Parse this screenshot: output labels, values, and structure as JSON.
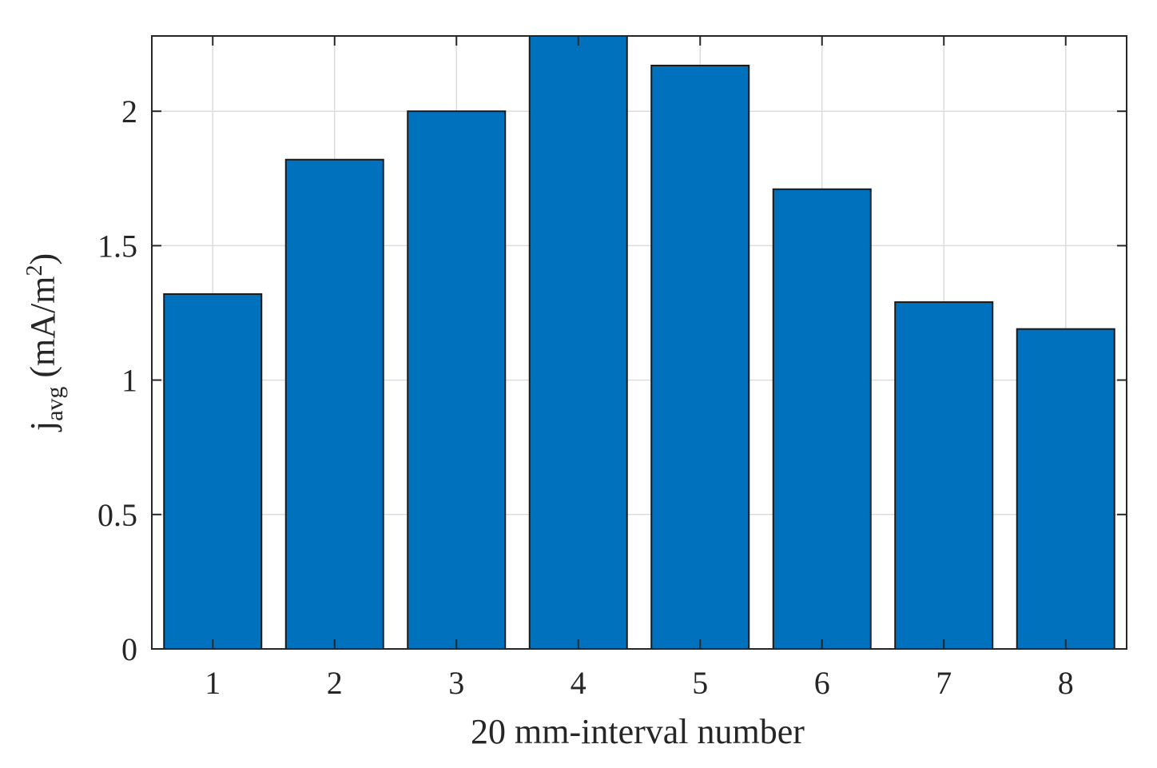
{
  "chart_data": {
    "type": "bar",
    "categories": [
      "1",
      "2",
      "3",
      "4",
      "5",
      "6",
      "7",
      "8"
    ],
    "values": [
      1.32,
      1.82,
      2.0,
      2.28,
      2.17,
      1.71,
      1.29,
      1.19
    ],
    "title": "",
    "xlabel": "20 mm-interval number",
    "ylabel": {
      "main": "j",
      "subscript": "avg",
      "unit_open": " (mA/m",
      "unit_sup": "2",
      "unit_close": ")"
    },
    "ylim": [
      0,
      2.28
    ],
    "yticks": [
      0,
      0.5,
      1,
      1.5,
      2
    ],
    "ytick_labels": [
      "0",
      "0.5",
      "1",
      "1.5",
      "2"
    ],
    "grid": true,
    "colors": {
      "bar_fill": "#0072BD",
      "bar_edge": "#1a1a1a",
      "axis": "#262626",
      "grid": "#dcdcdc"
    }
  }
}
